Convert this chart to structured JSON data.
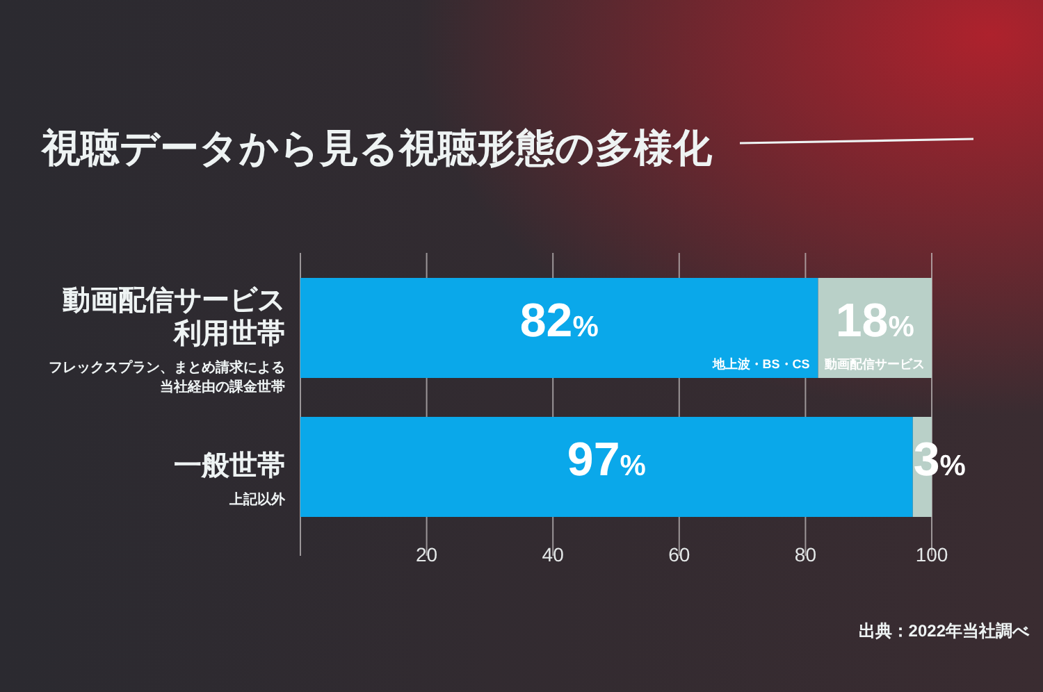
{
  "chart_data": {
    "type": "bar",
    "orientation": "horizontal",
    "stacked": true,
    "title": "視聴データから見る視聴形態の多様化",
    "categories": [
      "動画配信サービス利用世帯",
      "一般世帯"
    ],
    "series": [
      {
        "name": "地上波・BS・CS",
        "color": "#0aa8ea",
        "values": [
          82,
          97
        ],
        "value_labels": [
          "82%",
          "97%"
        ]
      },
      {
        "name": "動画配信サービス",
        "color": "#b9d0c8",
        "values": [
          18,
          3
        ],
        "value_labels": [
          "18%",
          "3%"
        ]
      }
    ],
    "xlim": [
      0,
      100
    ],
    "xticks": [
      {
        "value": 0,
        "label": null
      },
      20,
      40,
      60,
      80,
      100
    ],
    "grid": "x",
    "legend": false,
    "annotations": [
      "フレックスプラン、まとめ請求による当社経由の課金世帯",
      "上記以外",
      "出典：2022年当社調べ"
    ]
  }
}
